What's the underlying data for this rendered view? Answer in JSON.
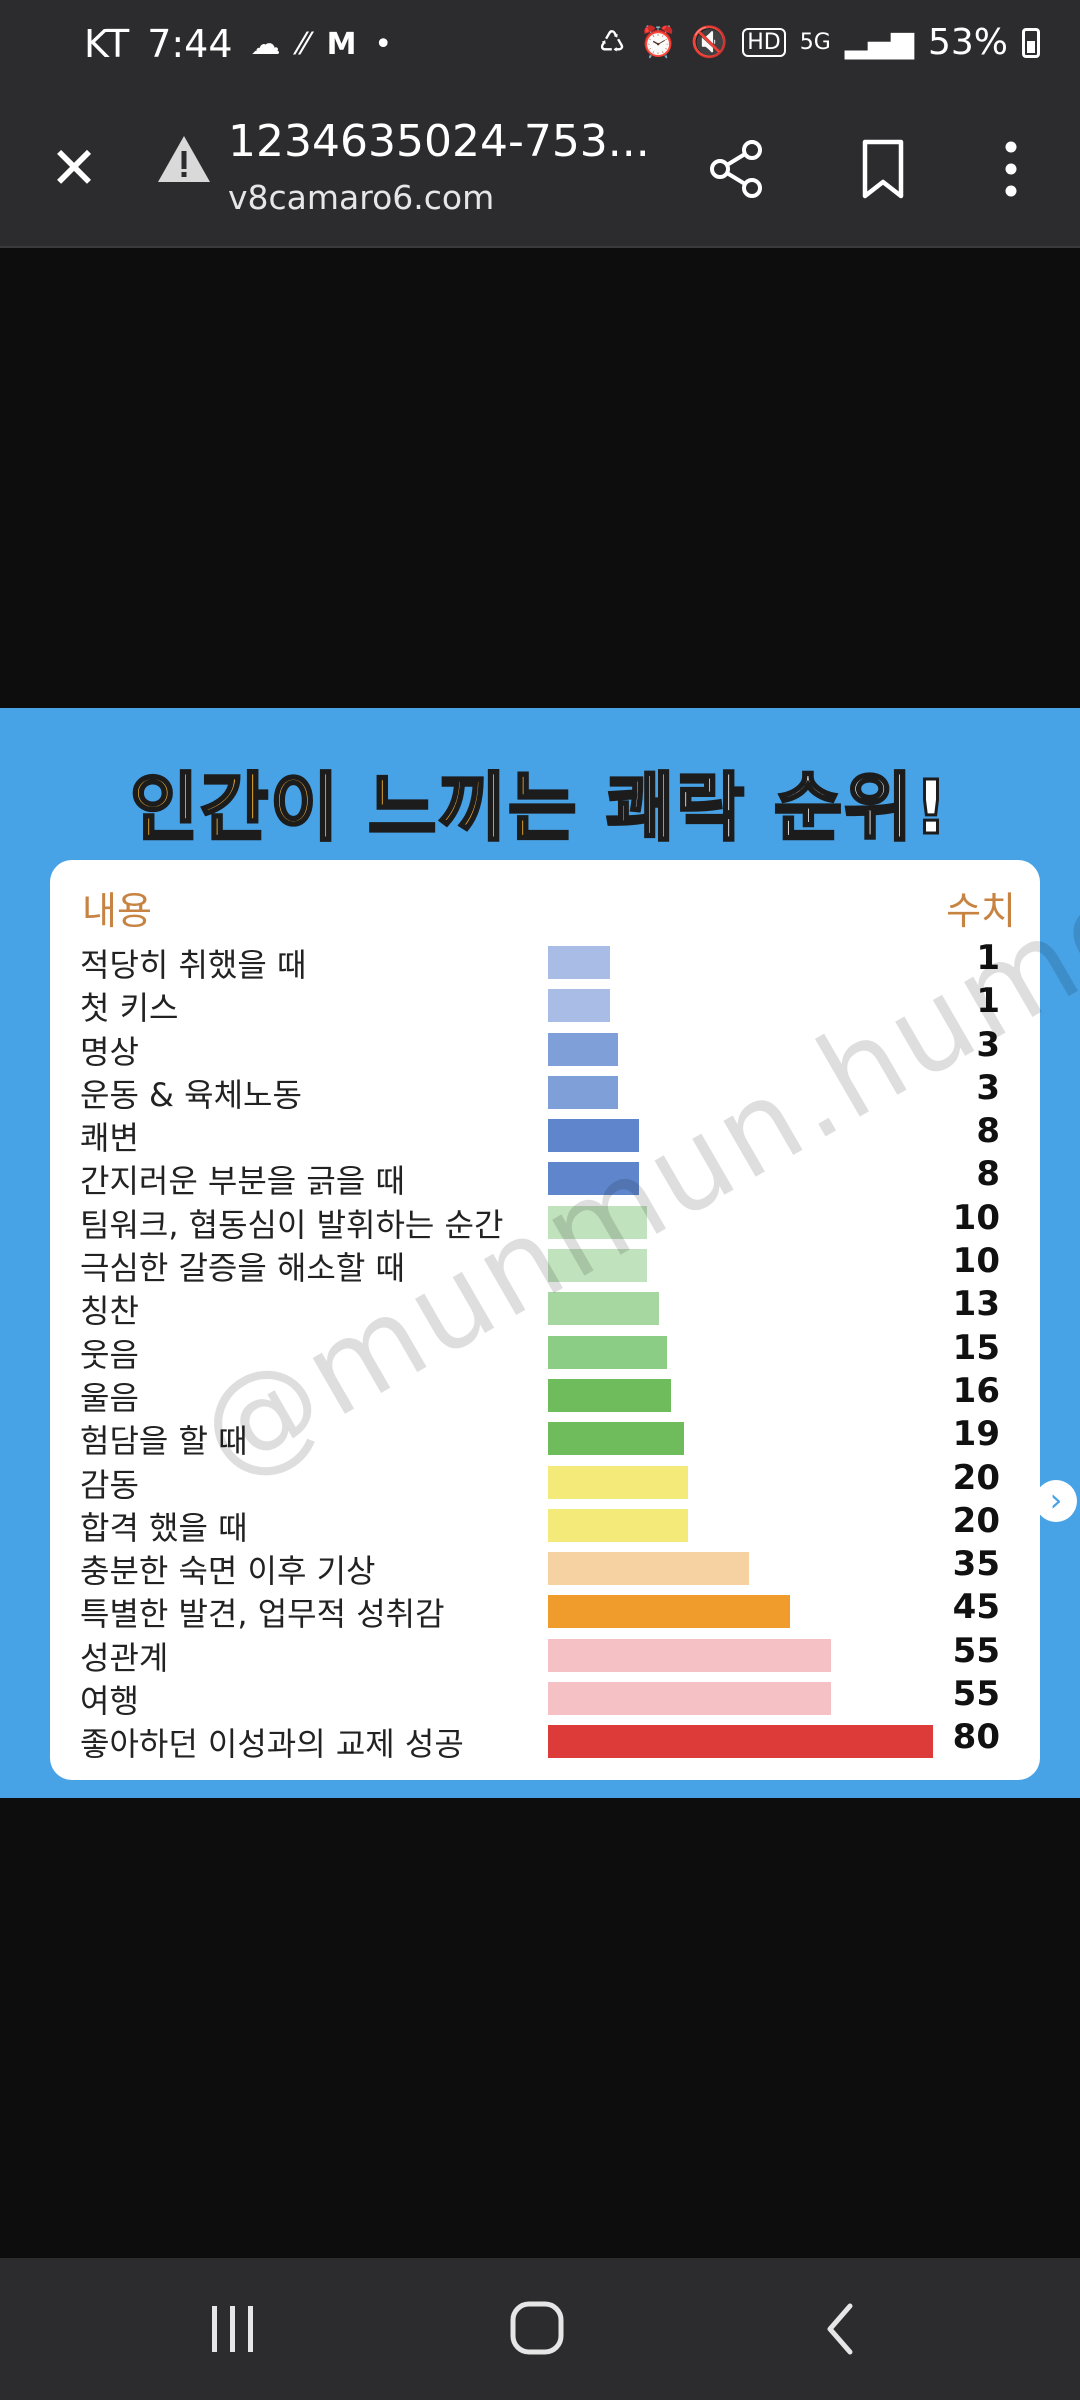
{
  "status_bar": {
    "carrier": "KT",
    "time": "7:44",
    "battery": "53%"
  },
  "toolbar": {
    "title": "1234635024-753...",
    "domain": "v8camaro6.com"
  },
  "infographic": {
    "title_part1": "인간이 느끼는",
    "title_part2": "쾌락 순위!",
    "header_left": "내용",
    "header_right": "수치",
    "watermark": "@munmun.humor",
    "rows": [
      {
        "label": "적당히 취했을 때",
        "value": "1",
        "color": "#a9bce6"
      },
      {
        "label": "첫 키스",
        "value": "1",
        "color": "#a9bce6"
      },
      {
        "label": "명상",
        "value": "3",
        "color": "#7f9fd8"
      },
      {
        "label": "운동 & 육체노동",
        "value": "3",
        "color": "#7f9fd8"
      },
      {
        "label": "쾌변",
        "value": "8",
        "color": "#5f86cc"
      },
      {
        "label": "간지러운 부분을 긁을 때",
        "value": "8",
        "color": "#5f86cc"
      },
      {
        "label": "팀워크, 협동심이 발휘하는 순간",
        "value": "10",
        "color": "#c0e3bd"
      },
      {
        "label": "극심한 갈증을 해소할 때",
        "value": "10",
        "color": "#c0e3bd"
      },
      {
        "label": "칭찬",
        "value": "13",
        "color": "#a6d7a1"
      },
      {
        "label": "웃음",
        "value": "15",
        "color": "#8ccd86"
      },
      {
        "label": "울음",
        "value": "16",
        "color": "#6fbc5c"
      },
      {
        "label": "험담을 할 때",
        "value": "19",
        "color": "#6fbc5c"
      },
      {
        "label": "감동",
        "value": "20",
        "color": "#f3ea7a"
      },
      {
        "label": "합격 했을 때",
        "value": "20",
        "color": "#f3ea7a"
      },
      {
        "label": "충분한 숙면 이후 기상",
        "value": "35",
        "color": "#f6d2a3"
      },
      {
        "label": "특별한 발견, 업무적 성취감",
        "value": "45",
        "color": "#f09c2c"
      },
      {
        "label": "성관계",
        "value": "55",
        "color": "#f6c1c4"
      },
      {
        "label": "여행",
        "value": "55",
        "color": "#f6c1c4"
      },
      {
        "label": "좋아하던 이성과의 교제 성공",
        "value": "80",
        "color": "#dd3b3a"
      }
    ]
  },
  "icons": {
    "close": "close-icon",
    "warning": "warning-icon",
    "share": "share-icon",
    "bookmark": "bookmark-icon",
    "more": "more-vert-icon",
    "next": "chevron-right-icon",
    "recents": "recents-icon",
    "home": "home-icon",
    "back": "back-icon"
  }
}
